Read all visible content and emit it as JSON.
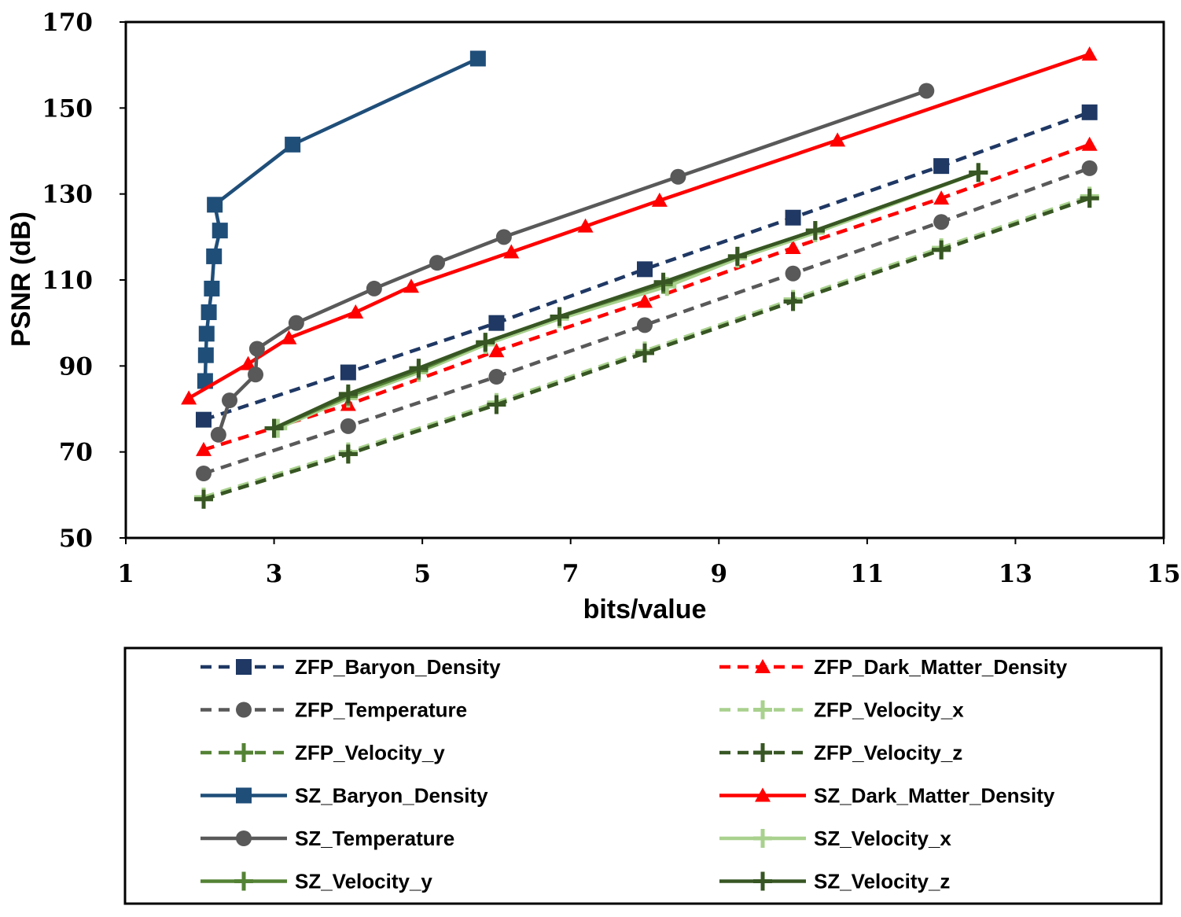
{
  "chart_data": {
    "type": "line",
    "title": "",
    "xlabel": "bits/value",
    "ylabel": "PSNR (dB)",
    "xlim": [
      1,
      15
    ],
    "ylim": [
      50,
      170
    ],
    "xticks": [
      1,
      3,
      5,
      7,
      9,
      11,
      13,
      15
    ],
    "yticks": [
      50,
      70,
      90,
      110,
      130,
      150,
      170
    ],
    "grid": false,
    "legend_position": "bottom",
    "series": [
      {
        "name": "ZFP_Baryon_Density",
        "color": "#1f3864",
        "dash": "dashed",
        "marker": "square",
        "x": [
          2.05,
          4.0,
          6.0,
          8.0,
          10.0,
          12.0,
          14.0
        ],
        "y": [
          77.5,
          88.5,
          100,
          112.5,
          124.5,
          136.5,
          149
        ]
      },
      {
        "name": "ZFP_Dark_Matter_Density",
        "color": "#ff0000",
        "dash": "dashed",
        "marker": "triangle",
        "x": [
          2.05,
          4.0,
          6.0,
          8.0,
          10.0,
          12.0,
          14.0
        ],
        "y": [
          70.5,
          81,
          93.5,
          105,
          117.5,
          129,
          141.5
        ]
      },
      {
        "name": "ZFP_Temperature",
        "color": "#595959",
        "dash": "dashed",
        "marker": "circle",
        "x": [
          2.05,
          4.0,
          6.0,
          8.0,
          10.0,
          12.0,
          14.0
        ],
        "y": [
          65,
          76,
          87.5,
          99.5,
          111.5,
          123.5,
          136
        ]
      },
      {
        "name": "ZFP_Velocity_x",
        "color": "#a9d18e",
        "dash": "dashed",
        "marker": "plus",
        "x": [
          2.05,
          4.0,
          6.0,
          8.0,
          10.0,
          12.0,
          14.0
        ],
        "y": [
          59.5,
          70,
          81.5,
          93.5,
          105.5,
          117.5,
          129.5
        ]
      },
      {
        "name": "ZFP_Velocity_y",
        "color": "#548235",
        "dash": "dashed",
        "marker": "plus",
        "x": [
          2.05,
          4.0,
          6.0,
          8.0,
          10.0,
          12.0,
          14.0
        ],
        "y": [
          59,
          69.5,
          81,
          93,
          105,
          117,
          129
        ]
      },
      {
        "name": "ZFP_Velocity_z",
        "color": "#375623",
        "dash": "dashed",
        "marker": "plus",
        "x": [
          2.05,
          4.0,
          6.0,
          8.0,
          10.0,
          12.0,
          14.0
        ],
        "y": [
          59,
          69.5,
          81,
          93,
          105,
          117,
          129
        ]
      },
      {
        "name": "SZ_Baryon_Density",
        "color": "#1f4e79",
        "dash": "solid",
        "marker": "square",
        "x": [
          2.07,
          2.08,
          2.09,
          2.12,
          2.16,
          2.19,
          2.27,
          2.2,
          3.25,
          5.75
        ],
        "y": [
          86.5,
          92.5,
          97.5,
          102.5,
          108,
          115.5,
          121.5,
          127.5,
          141.5,
          161.5
        ]
      },
      {
        "name": "SZ_Dark_Matter_Density",
        "color": "#ff0000",
        "dash": "solid",
        "marker": "triangle",
        "x": [
          1.85,
          2.65,
          3.2,
          4.1,
          4.85,
          6.2,
          7.2,
          8.2,
          10.6,
          14.0
        ],
        "y": [
          82.5,
          90.5,
          96.5,
          102.5,
          108.5,
          116.5,
          122.5,
          128.5,
          142.5,
          162.5
        ]
      },
      {
        "name": "SZ_Temperature",
        "color": "#595959",
        "dash": "solid",
        "marker": "circle",
        "x": [
          2.25,
          2.4,
          2.75,
          2.77,
          3.3,
          4.35,
          5.2,
          6.1,
          8.45,
          11.8
        ],
        "y": [
          74,
          82,
          88,
          94,
          100,
          108,
          114,
          120,
          134,
          154
        ]
      },
      {
        "name": "SZ_Velocity_x",
        "color": "#a9d18e",
        "dash": "solid",
        "marker": "plus",
        "x": [
          3.05,
          4.0,
          4.95,
          5.85,
          6.85,
          8.3,
          9.25,
          10.3,
          12.5
        ],
        "y": [
          75.5,
          82.5,
          88.5,
          95,
          101,
          108.5,
          115,
          121,
          135
        ]
      },
      {
        "name": "SZ_Velocity_y",
        "color": "#548235",
        "dash": "solid",
        "marker": "plus",
        "x": [
          3.0,
          4.0,
          4.95,
          5.85,
          6.85,
          8.25,
          9.25,
          10.3,
          12.5
        ],
        "y": [
          75.5,
          83,
          89,
          95.5,
          101.5,
          109,
          115.5,
          121.5,
          135
        ]
      },
      {
        "name": "SZ_Velocity_z",
        "color": "#375623",
        "dash": "solid",
        "marker": "plus",
        "x": [
          3.0,
          4.0,
          4.95,
          5.85,
          6.85,
          8.25,
          9.25,
          10.3,
          12.5
        ],
        "y": [
          75.5,
          83.5,
          89.5,
          95.5,
          101.5,
          109.5,
          115.5,
          121.5,
          135
        ]
      }
    ]
  }
}
